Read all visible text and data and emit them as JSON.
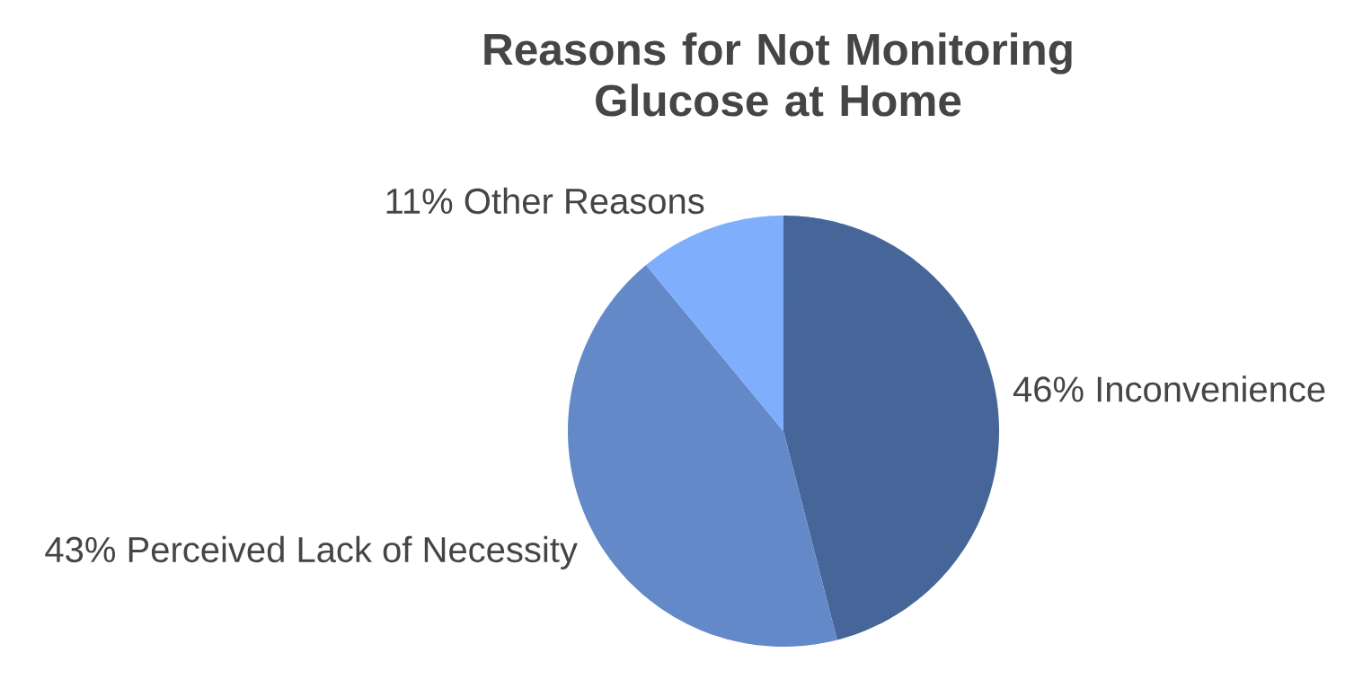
{
  "chart_data": {
    "type": "pie",
    "title": "Reasons for Not Monitoring Glucose at Home",
    "categories": [
      "Inconvenience",
      "Perceived Lack of Necessity",
      "Other Reasons"
    ],
    "values": [
      46,
      43,
      11
    ],
    "value_labels": [
      "46%",
      "43%",
      "11%"
    ],
    "colors": [
      "#46669a",
      "#6389c8",
      "#7faefc"
    ]
  }
}
